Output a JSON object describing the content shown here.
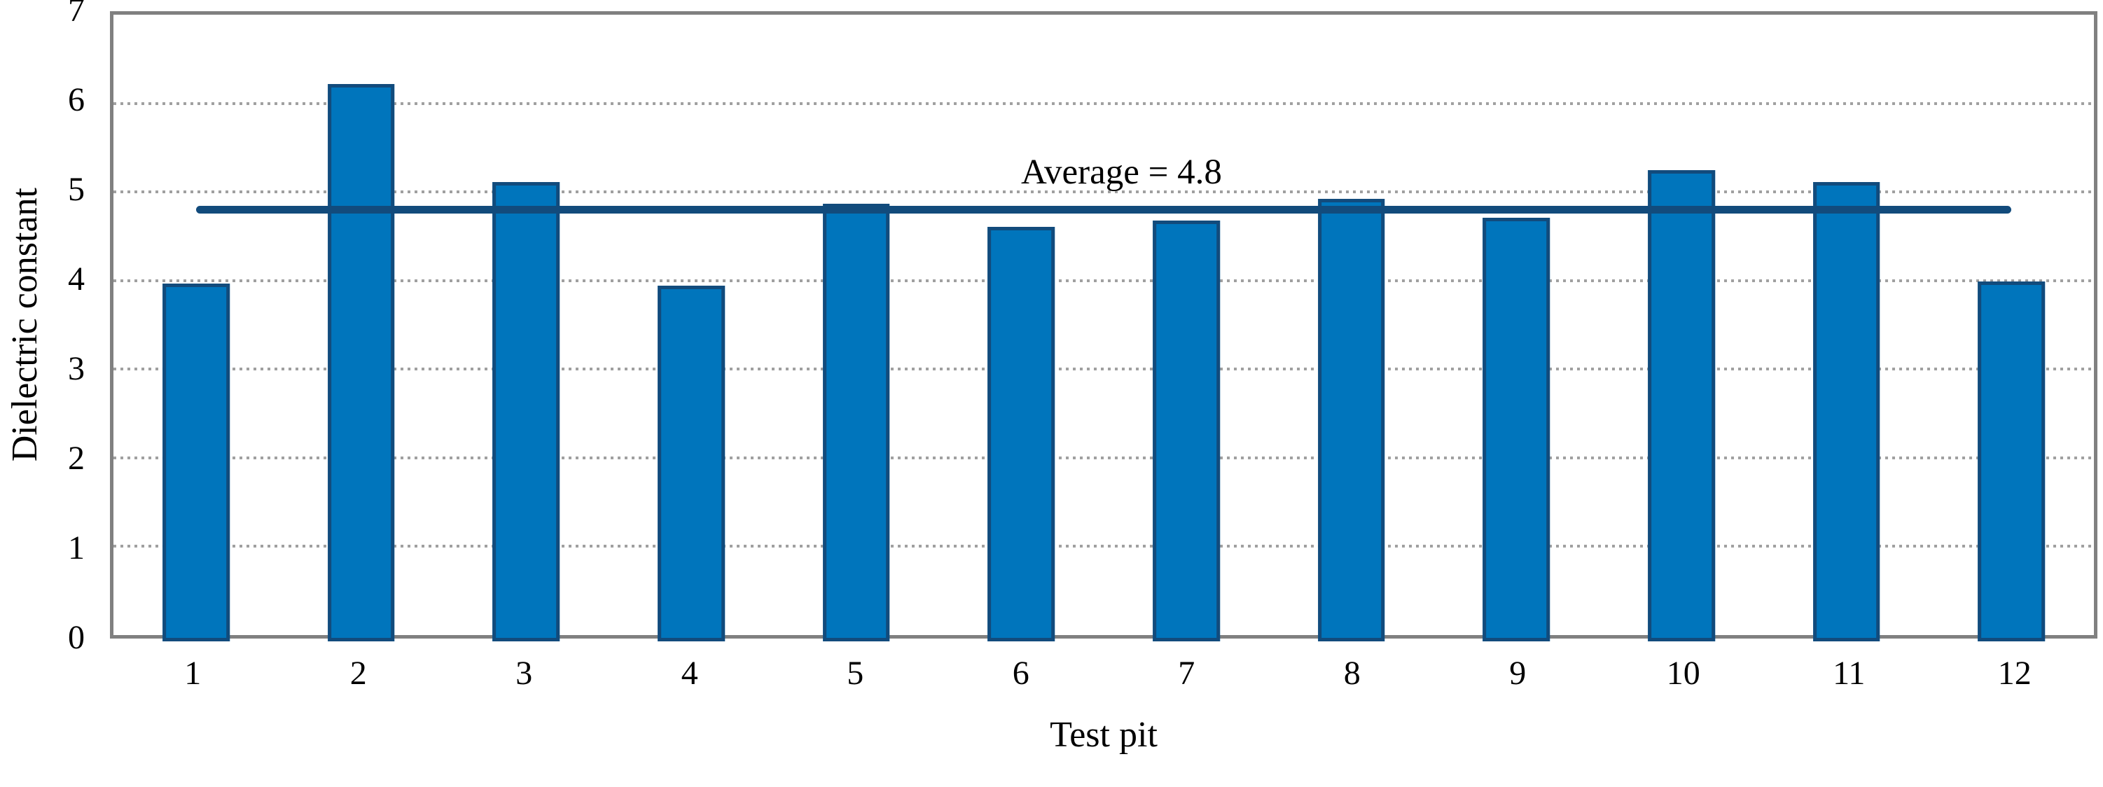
{
  "chart_data": {
    "type": "bar",
    "title": "",
    "categories": [
      "1",
      "2",
      "3",
      "4",
      "5",
      "6",
      "7",
      "8",
      "9",
      "10",
      "11",
      "12"
    ],
    "values": [
      3.97,
      6.22,
      5.11,
      3.94,
      4.87,
      4.61,
      4.68,
      4.92,
      4.71,
      5.25,
      5.11,
      3.99
    ],
    "xlabel": "Test pit",
    "ylabel": "Dielectric constant",
    "ylim": [
      0,
      7
    ],
    "yticks": [
      0,
      1,
      2,
      3,
      4,
      5,
      6,
      7
    ],
    "grid": "horizontal-dotted",
    "legend": "none",
    "average_line": {
      "value": 4.8,
      "label": "Average = 4.8",
      "span": "from category 1 center to category 12 center"
    },
    "colors": {
      "bar_fill": "#0075BC",
      "bar_border": "#124B7C",
      "average_line": "#124B7C",
      "gridline": "#A0A0A0",
      "frame": "#808080",
      "text": "#000000",
      "background": "#FFFFFF"
    }
  }
}
